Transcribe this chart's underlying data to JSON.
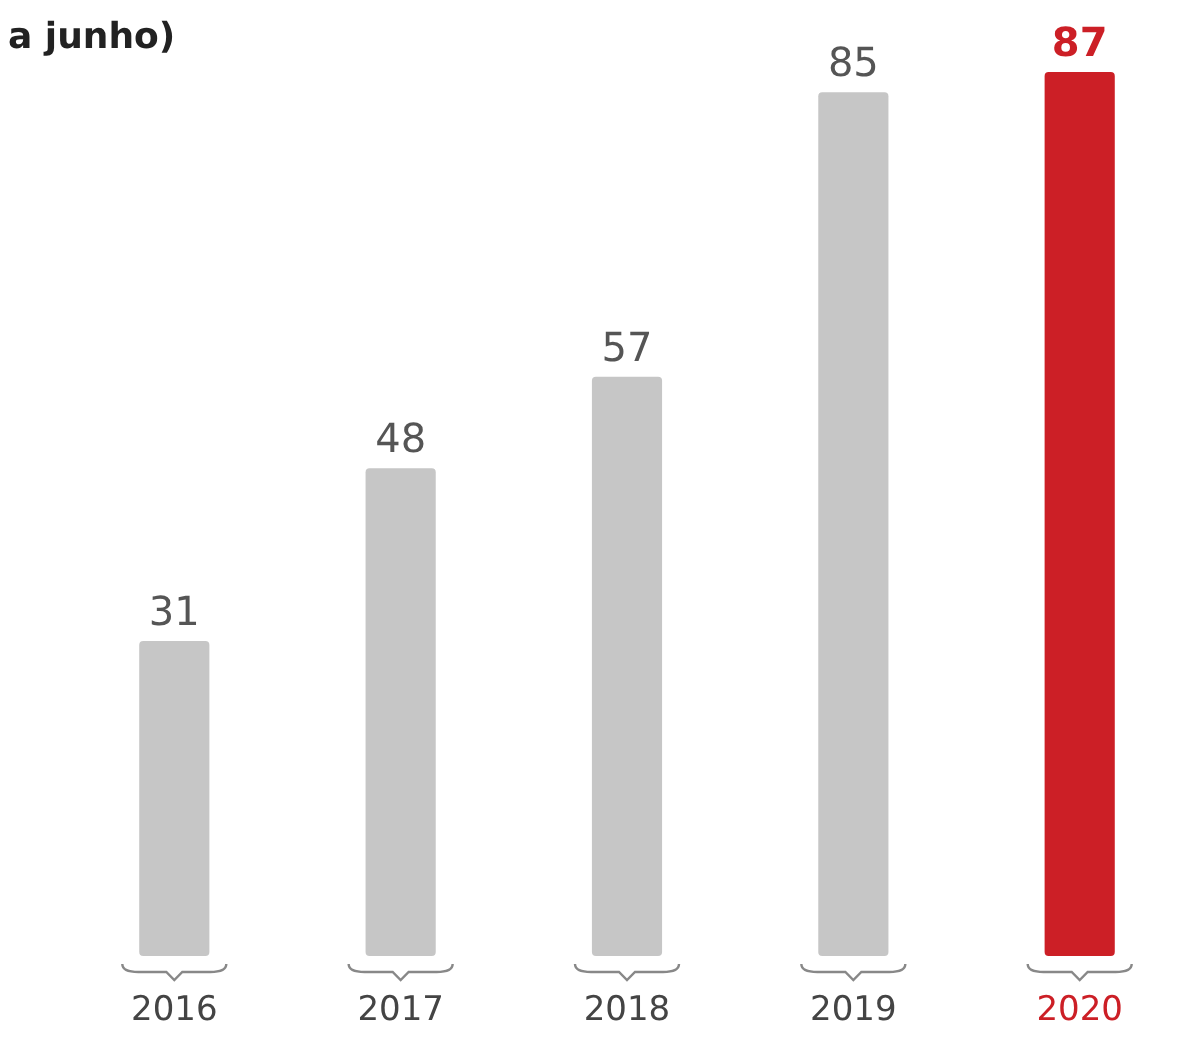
{
  "chart_data": {
    "type": "bar",
    "title": "a junho)",
    "categories": [
      "2016",
      "2017",
      "2018",
      "2019",
      "2020"
    ],
    "values": [
      31,
      48,
      57,
      85,
      87
    ],
    "colors": [
      "#c6c6c6",
      "#c6c6c6",
      "#c6c6c6",
      "#c6c6c6",
      "#cc1f26"
    ],
    "data_labels": true
  }
}
